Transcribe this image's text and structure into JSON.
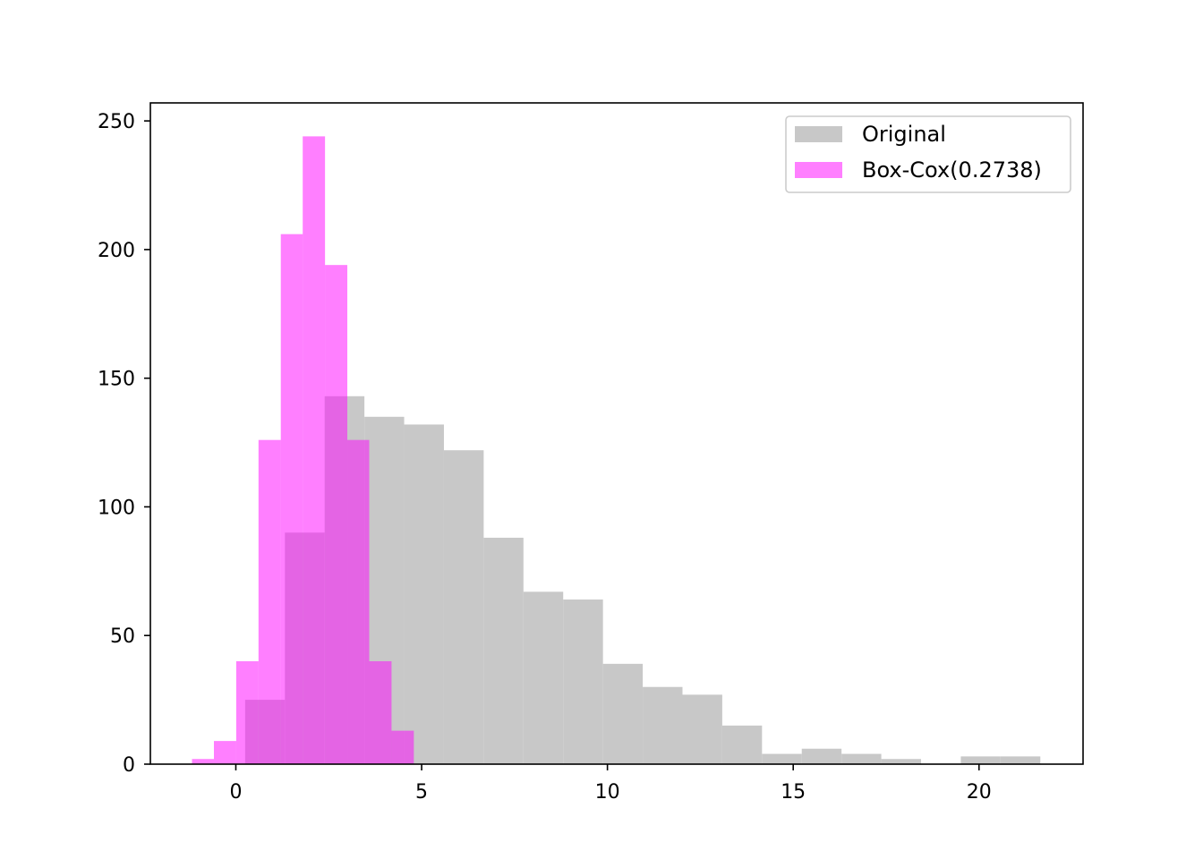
{
  "chart_data": {
    "type": "bar",
    "title": "",
    "xlabel": "",
    "ylabel": "",
    "xlim": [
      -2.3,
      22.8
    ],
    "ylim": [
      0,
      257
    ],
    "grid": false,
    "legend_position": "top-right",
    "x_ticks": [
      0,
      5,
      10,
      15,
      20
    ],
    "x_tick_labels": [
      "0",
      "5",
      "10",
      "15",
      "20"
    ],
    "y_ticks": [
      0,
      50,
      100,
      150,
      200,
      250
    ],
    "y_tick_labels": [
      "0",
      "50",
      "100",
      "150",
      "200",
      "250"
    ],
    "series": [
      {
        "name": "Original",
        "color": "#c8c8c8",
        "opacity": 1.0,
        "bin_edges": [
          0.25,
          1.32,
          2.39,
          3.46,
          4.53,
          5.6,
          6.67,
          7.74,
          8.81,
          9.88,
          10.95,
          12.02,
          13.09,
          14.16,
          15.23,
          16.3,
          17.37,
          18.44,
          19.51,
          20.58,
          21.65
        ],
        "values": [
          25,
          90,
          143,
          135,
          132,
          122,
          88,
          67,
          64,
          39,
          30,
          27,
          15,
          4,
          6,
          4,
          2,
          0,
          3,
          3
        ]
      },
      {
        "name": "Box-Cox(0.2738)",
        "color": "#ff00ff",
        "opacity": 0.5,
        "bin_edges": [
          -1.18,
          -0.59,
          0.01,
          0.61,
          1.21,
          1.8,
          2.4,
          3.0,
          3.59,
          4.19,
          4.79
        ],
        "values": [
          2,
          9,
          40,
          126,
          206,
          244,
          194,
          126,
          40,
          13
        ]
      }
    ]
  }
}
